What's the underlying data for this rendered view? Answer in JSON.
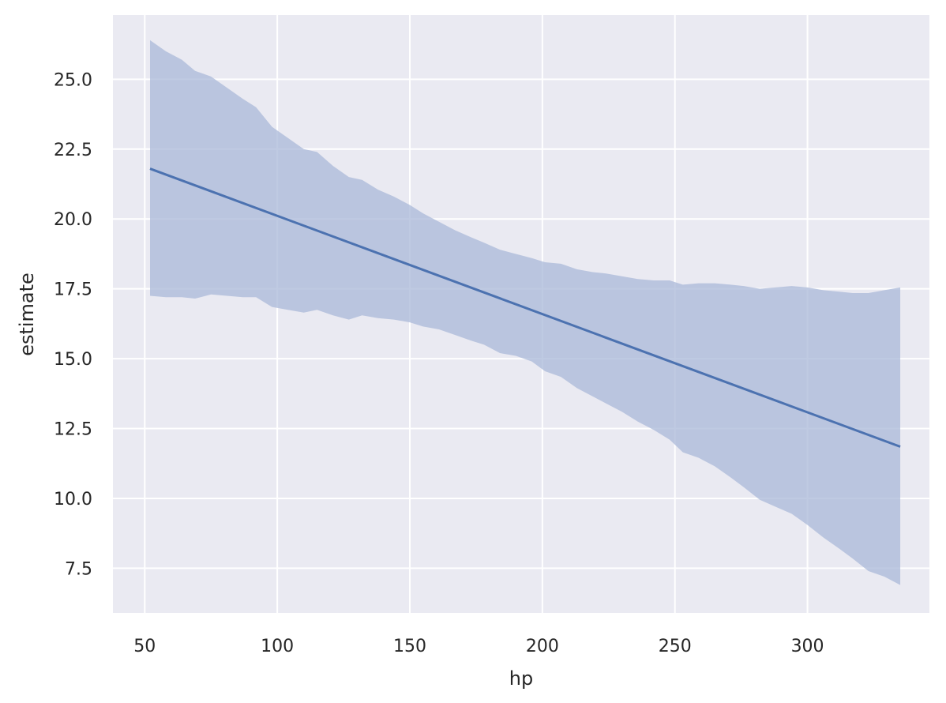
{
  "chart_data": {
    "type": "line",
    "title": "",
    "xlabel": "hp",
    "ylabel": "estimate",
    "xlim": [
      38,
      346
    ],
    "ylim": [
      5.9,
      27.3
    ],
    "xticks": [
      50,
      100,
      150,
      200,
      250,
      300
    ],
    "yticks": [
      7.5,
      10.0,
      12.5,
      15.0,
      17.5,
      20.0,
      22.5,
      25.0
    ],
    "xtick_labels": [
      "50",
      "100",
      "150",
      "200",
      "250",
      "300"
    ],
    "ytick_labels": [
      "7.5",
      "10.0",
      "12.5",
      "15.0",
      "17.5",
      "20.0",
      "22.5",
      "25.0"
    ],
    "grid": true,
    "colors": {
      "background": "#eaeaf2",
      "grid": "#ffffff",
      "line": "#4c72b0",
      "band": "#a9b8d8"
    },
    "series": [
      {
        "x": [
          52,
          335
        ],
        "values": [
          21.8,
          11.85
        ]
      }
    ],
    "band": {
      "x": [
        52,
        58,
        64,
        69,
        75,
        81,
        87,
        92,
        98,
        104,
        110,
        115,
        121,
        127,
        132,
        138,
        144,
        150,
        155,
        161,
        167,
        173,
        178,
        184,
        190,
        196,
        201,
        207,
        213,
        219,
        224,
        230,
        236,
        242,
        248,
        253,
        259,
        265,
        271,
        276,
        282,
        288,
        294,
        300,
        306,
        312,
        317,
        323,
        329,
        335
      ],
      "upper": [
        26.4,
        26.0,
        25.7,
        25.3,
        25.1,
        24.7,
        24.3,
        24.0,
        23.3,
        22.9,
        22.5,
        22.4,
        21.9,
        21.5,
        21.4,
        21.05,
        20.8,
        20.5,
        20.2,
        19.9,
        19.6,
        19.35,
        19.15,
        18.9,
        18.75,
        18.6,
        18.45,
        18.4,
        18.2,
        18.1,
        18.05,
        17.95,
        17.85,
        17.8,
        17.8,
        17.65,
        17.7,
        17.7,
        17.65,
        17.6,
        17.5,
        17.55,
        17.6,
        17.55,
        17.45,
        17.4,
        17.35,
        17.35,
        17.45,
        17.55
      ],
      "lower": [
        17.25,
        17.2,
        17.2,
        17.15,
        17.3,
        17.25,
        17.2,
        17.2,
        16.85,
        16.75,
        16.65,
        16.75,
        16.55,
        16.4,
        16.55,
        16.45,
        16.4,
        16.3,
        16.15,
        16.05,
        15.85,
        15.65,
        15.5,
        15.2,
        15.1,
        14.9,
        14.55,
        14.35,
        13.95,
        13.65,
        13.4,
        13.1,
        12.75,
        12.45,
        12.1,
        11.65,
        11.45,
        11.15,
        10.75,
        10.4,
        9.95,
        9.7,
        9.45,
        9.05,
        8.6,
        8.2,
        7.85,
        7.4,
        7.2,
        6.9
      ]
    }
  }
}
